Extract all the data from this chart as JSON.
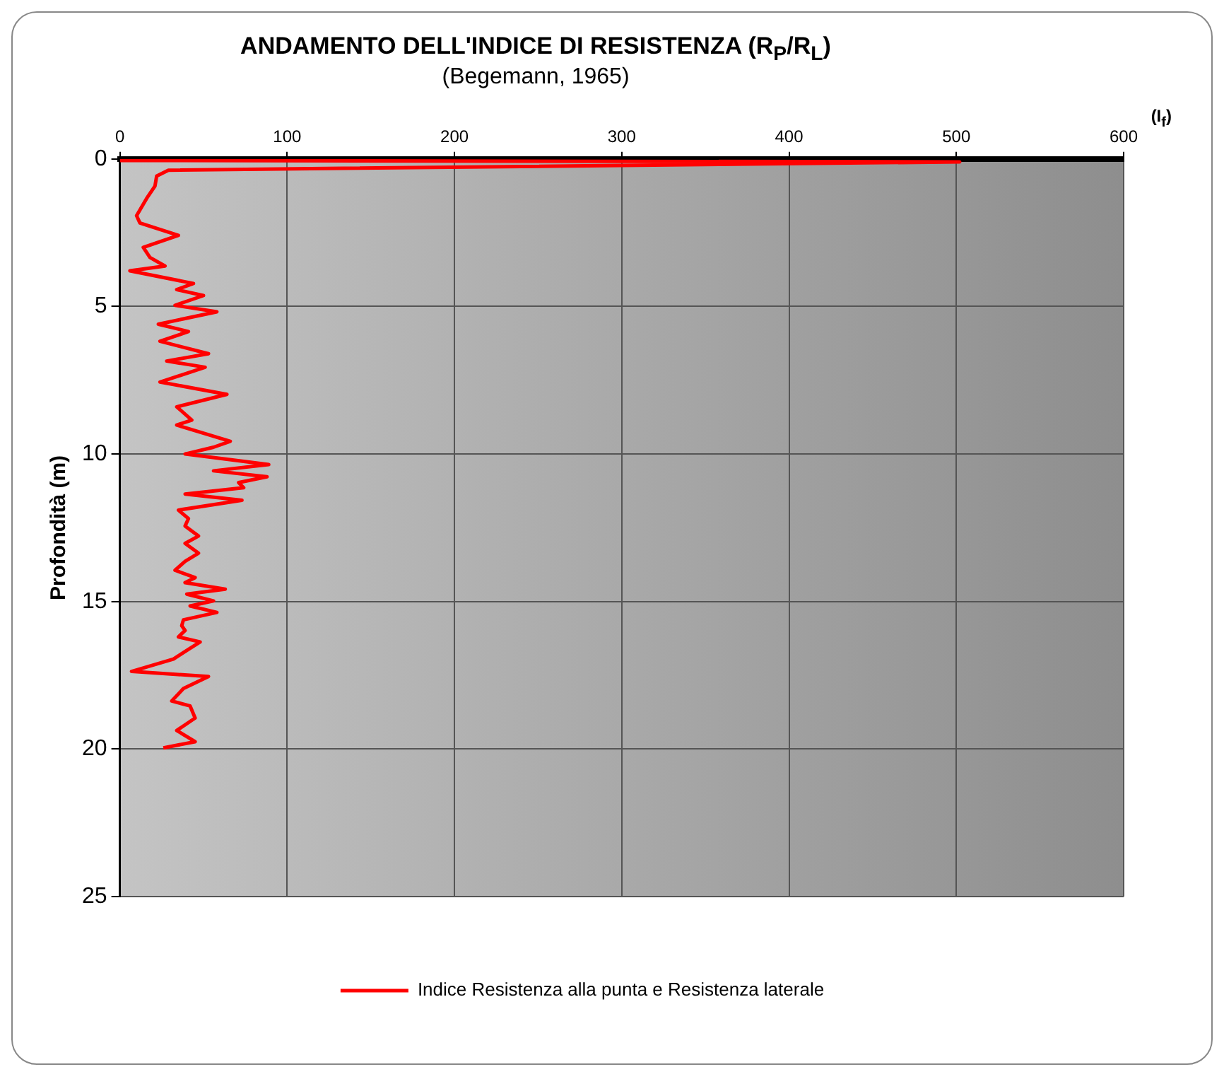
{
  "chart_data": {
    "type": "line",
    "title": "ANDAMENTO DELL'INDICE DI RESISTENZA     (R$_{P}$/R$_{L}$)",
    "subtitle": "(Begemann, 1965)",
    "xlabel": "(I$_{f}$)",
    "ylabel": "Profondità (m)",
    "xlim": [
      0,
      600
    ],
    "xticks": [
      0,
      100,
      200,
      300,
      400,
      500,
      600
    ],
    "ylim": [
      25,
      0
    ],
    "yticks": [
      0,
      5,
      10,
      15,
      20,
      25
    ],
    "grid": true,
    "legend": "bottom",
    "marker": "none",
    "line_style": "solid",
    "series": [
      {
        "name": "Indice Resistenza alla punta e Resistenza laterale",
        "color": "#ff0000",
        "x": [
          0,
          502,
          29,
          22,
          21,
          16,
          10,
          12,
          35,
          14,
          18,
          27,
          6,
          44,
          34,
          50,
          33,
          58,
          23,
          41,
          24,
          53,
          28,
          51,
          24,
          64,
          34,
          43,
          34,
          66,
          56,
          39,
          89,
          56,
          88,
          71,
          74,
          39,
          73,
          35,
          41,
          39,
          47,
          39,
          47,
          39,
          33,
          45,
          39,
          63,
          40,
          56,
          42,
          58,
          38,
          37,
          39,
          35,
          48,
          41,
          32,
          7,
          53,
          38,
          31,
          42,
          45,
          34,
          45,
          26
        ],
        "values": [
          0.05,
          0.1,
          0.38,
          0.58,
          0.92,
          1.34,
          1.92,
          2.17,
          2.59,
          3.0,
          3.34,
          3.63,
          3.79,
          4.22,
          4.43,
          4.63,
          4.96,
          5.18,
          5.6,
          5.85,
          6.18,
          6.6,
          6.85,
          7.06,
          7.56,
          7.98,
          8.4,
          8.85,
          9.02,
          9.57,
          9.77,
          10.0,
          10.36,
          10.57,
          10.77,
          10.97,
          11.14,
          11.36,
          11.57,
          11.9,
          12.19,
          12.44,
          12.78,
          13.03,
          13.36,
          13.64,
          13.94,
          14.19,
          14.36,
          14.58,
          14.75,
          14.98,
          15.15,
          15.37,
          15.62,
          15.82,
          15.98,
          16.2,
          16.37,
          16.62,
          16.95,
          17.37,
          17.54,
          17.95,
          18.37,
          18.54,
          18.95,
          19.37,
          19.75,
          19.96
        ]
      }
    ]
  }
}
